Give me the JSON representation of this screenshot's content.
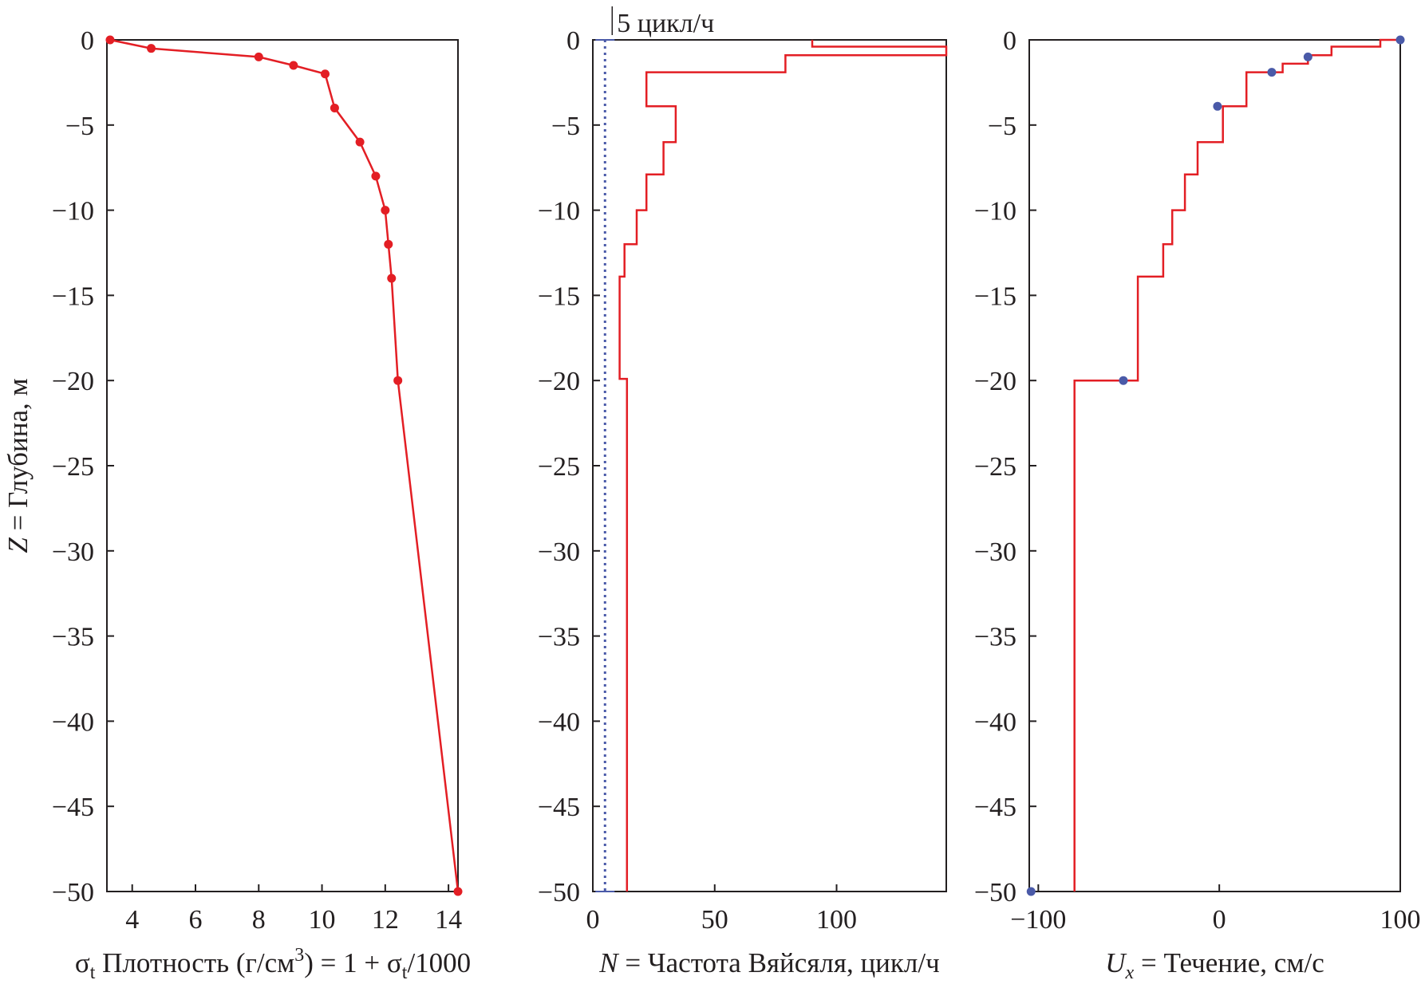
{
  "chart_data": [
    {
      "type": "line",
      "xlabel_parts": {
        "sym": "σ",
        "sub": "t",
        "text": " Плотность (г/см",
        "sup": "3",
        "tail": ") = 1 + σ",
        "sub2": "t",
        "end": "/1000"
      },
      "ylabel_parts": {
        "italic": "Z",
        "text": " = Глубина, м"
      },
      "xlim": [
        3.2,
        14.3
      ],
      "ylim": [
        -50,
        0
      ],
      "xticks": [
        4,
        6,
        8,
        10,
        12,
        14
      ],
      "yticks": [
        0,
        -5,
        -10,
        -15,
        -20,
        -25,
        -30,
        -35,
        -40,
        -45,
        -50
      ],
      "series": [
        {
          "color": "#e31e24",
          "marker": "dot",
          "points": [
            [
              3.3,
              0
            ],
            [
              4.6,
              -0.5
            ],
            [
              8.0,
              -1.0
            ],
            [
              9.1,
              -1.5
            ],
            [
              10.1,
              -2.0
            ],
            [
              10.4,
              -4.0
            ],
            [
              11.2,
              -6.0
            ],
            [
              11.7,
              -8.0
            ],
            [
              12.0,
              -10.0
            ],
            [
              12.1,
              -12.0
            ],
            [
              12.2,
              -14.0
            ],
            [
              12.4,
              -20.0
            ],
            [
              14.3,
              -50.0
            ]
          ]
        }
      ]
    },
    {
      "type": "line",
      "xlabel_parts": {
        "italic": "N",
        "text": " = Частота Вяйсяля, цикл/ч"
      },
      "xlim": [
        0,
        145
      ],
      "ylim": [
        -50,
        0
      ],
      "xticks": [
        0,
        50,
        100
      ],
      "yticks": [
        0,
        -5,
        -10,
        -15,
        -20,
        -25,
        -30,
        -35,
        -40,
        -45,
        -50
      ],
      "annotation": "5 цикл/ч",
      "reference_line": {
        "x": 5,
        "color": "#4a5aa8",
        "style": "dotted"
      },
      "series": [
        {
          "color": "#e31e24",
          "step": true,
          "points": [
            [
              90,
              0
            ],
            [
              90,
              -0.4
            ],
            [
              145,
              -0.4
            ],
            [
              145,
              -0.9
            ],
            [
              79,
              -0.9
            ],
            [
              79,
              -1.9
            ],
            [
              22,
              -1.9
            ],
            [
              22,
              -3.9
            ],
            [
              34,
              -3.9
            ],
            [
              34,
              -6.0
            ],
            [
              29,
              -6.0
            ],
            [
              29,
              -7.9
            ],
            [
              22,
              -7.9
            ],
            [
              22,
              -10.0
            ],
            [
              18,
              -10.0
            ],
            [
              18,
              -12.0
            ],
            [
              13,
              -12.0
            ],
            [
              13,
              -13.9
            ],
            [
              11,
              -13.9
            ],
            [
              11,
              -19.9
            ],
            [
              14,
              -19.9
            ],
            [
              14,
              -50
            ]
          ]
        }
      ]
    },
    {
      "type": "line",
      "xlabel_parts": {
        "italic": "U",
        "sub_italic": "x",
        "text": " = Течение, см/с"
      },
      "xlim": [
        -105,
        100
      ],
      "ylim": [
        -50,
        0
      ],
      "xticks": [
        -100,
        0,
        100
      ],
      "yticks": [
        0,
        -5,
        -10,
        -15,
        -20,
        -25,
        -30,
        -35,
        -40,
        -45,
        -50
      ],
      "series": [
        {
          "color": "#e31e24",
          "step": true,
          "points": [
            [
              100,
              0
            ],
            [
              89,
              0
            ],
            [
              89,
              -0.4
            ],
            [
              62,
              -0.4
            ],
            [
              62,
              -0.9
            ],
            [
              49,
              -0.9
            ],
            [
              49,
              -1.4
            ],
            [
              35,
              -1.4
            ],
            [
              35,
              -1.9
            ],
            [
              15,
              -1.9
            ],
            [
              15,
              -3.9
            ],
            [
              2,
              -3.9
            ],
            [
              2,
              -6.0
            ],
            [
              -12,
              -6.0
            ],
            [
              -12,
              -7.9
            ],
            [
              -19,
              -7.9
            ],
            [
              -19,
              -10.0
            ],
            [
              -26,
              -10.0
            ],
            [
              -26,
              -12.0
            ],
            [
              -31,
              -12.0
            ],
            [
              -31,
              -13.9
            ],
            [
              -45,
              -13.9
            ],
            [
              -45,
              -20.0
            ],
            [
              -80,
              -20.0
            ],
            [
              -80,
              -50
            ]
          ]
        },
        {
          "color": "#4a5aa8",
          "marker": "dot",
          "scatter": true,
          "points": [
            [
              100,
              0
            ],
            [
              49,
              -1.0
            ],
            [
              29,
              -1.9
            ],
            [
              -1,
              -3.9
            ],
            [
              -53,
              -20.0
            ],
            [
              -104,
              -50
            ]
          ]
        }
      ]
    }
  ]
}
